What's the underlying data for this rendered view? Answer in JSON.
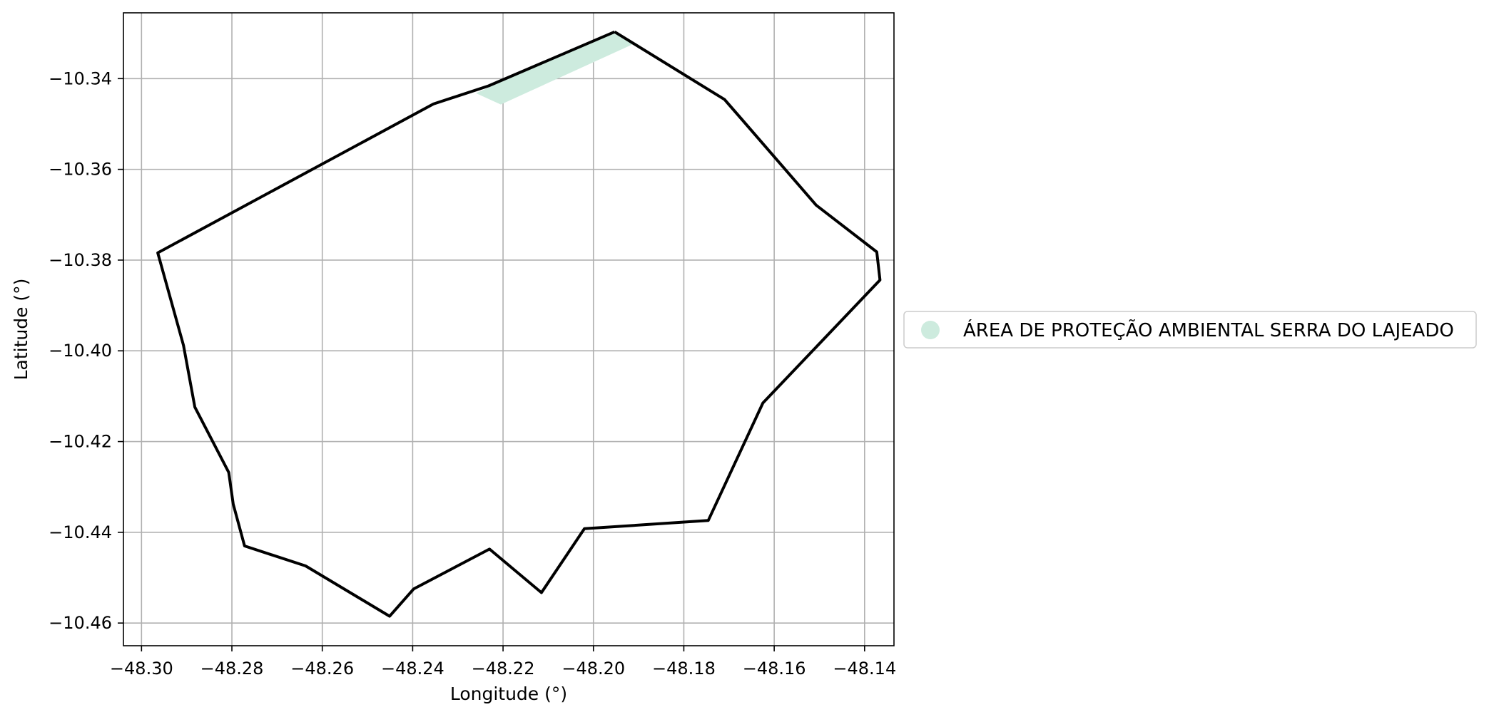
{
  "chart_data": {
    "type": "map",
    "xlabel": "Longitude (°)",
    "ylabel": "Latitude (°)",
    "xlim": [
      -48.304,
      -48.1335
    ],
    "ylim": [
      -10.465,
      -10.3255
    ],
    "x_ticks": [
      -48.3,
      -48.28,
      -48.26,
      -48.24,
      -48.22,
      -48.2,
      -48.18,
      -48.16,
      -48.14
    ],
    "y_ticks": [
      -10.34,
      -10.36,
      -10.38,
      -10.4,
      -10.42,
      -10.44,
      -10.46
    ],
    "x_tick_labels": [
      "−48.30",
      "−48.28",
      "−48.26",
      "−48.24",
      "−48.22",
      "−48.20",
      "−48.18",
      "−48.16",
      "−48.14"
    ],
    "y_tick_labels": [
      "−10.34",
      "−10.36",
      "−10.38",
      "−10.40",
      "−10.42",
      "−10.44",
      "−10.46"
    ],
    "grid": true,
    "legend_position": "right",
    "legend": [
      {
        "label": "ÁREA DE PROTEÇÃO AMBIENTAL SERRA DO LAJEADO",
        "color": "#cdebde"
      }
    ],
    "boundary": {
      "color": "#000000",
      "coordinates": [
        [
          -48.1953,
          -10.3297
        ],
        [
          -48.171,
          -10.3446
        ],
        [
          -48.1675,
          -10.3486
        ],
        [
          -48.1507,
          -10.3679
        ],
        [
          -48.1373,
          -10.3782
        ],
        [
          -48.1366,
          -10.3844
        ],
        [
          -48.1625,
          -10.4115
        ],
        [
          -48.1746,
          -10.4374
        ],
        [
          -48.202,
          -10.4392
        ],
        [
          -48.2115,
          -10.4533
        ],
        [
          -48.223,
          -10.4437
        ],
        [
          -48.2398,
          -10.4525
        ],
        [
          -48.2451,
          -10.4585
        ],
        [
          -48.2637,
          -10.4474
        ],
        [
          -48.2772,
          -10.443
        ],
        [
          -48.2797,
          -10.4338
        ],
        [
          -48.2807,
          -10.4268
        ],
        [
          -48.2882,
          -10.4124
        ],
        [
          -48.2907,
          -10.3988
        ],
        [
          -48.2964,
          -10.3784
        ],
        [
          -48.2354,
          -10.3456
        ],
        [
          -48.2232,
          -10.3416
        ],
        [
          -48.1953,
          -10.3297
        ]
      ]
    },
    "protected_area": {
      "name": "ÁREA DE PROTEÇÃO AMBIENTAL SERRA DO LAJEADO",
      "color": "#cdebde",
      "coordinates": [
        [
          -48.1953,
          -10.3297
        ],
        [
          -48.191,
          -10.3323
        ],
        [
          -48.2205,
          -10.3457
        ],
        [
          -48.226,
          -10.3432
        ],
        [
          -48.1953,
          -10.3297
        ]
      ]
    }
  }
}
